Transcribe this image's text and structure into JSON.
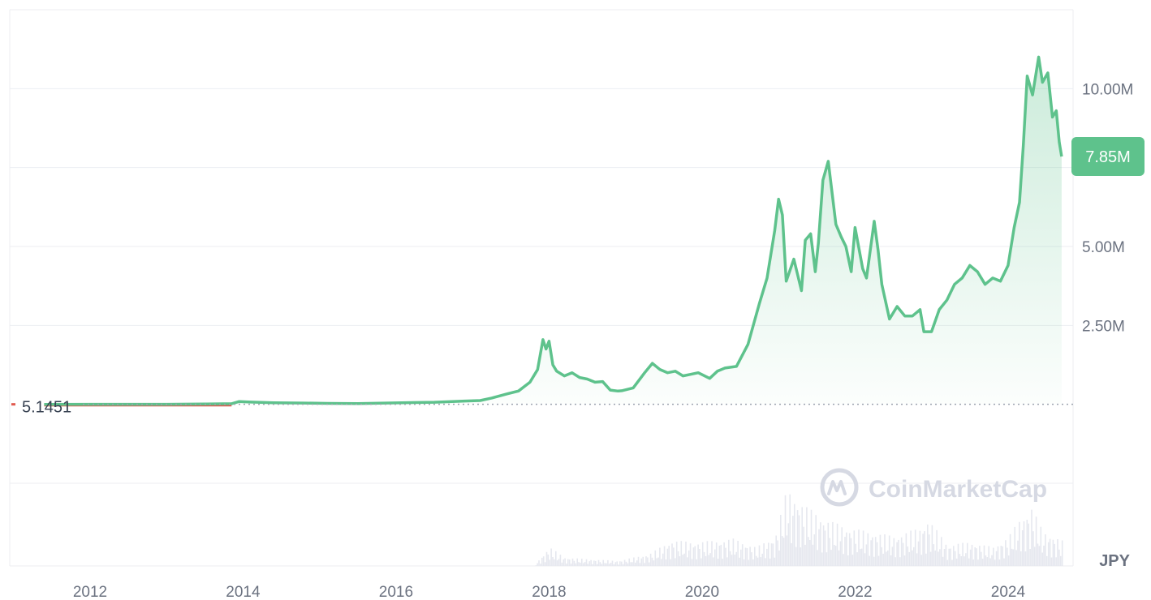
{
  "colors": {
    "line_up": "#5ec28c",
    "line_down": "#e05a4f",
    "area_top": "#5ec28c",
    "grid": "#eceef2",
    "volume": "#e6e8ef",
    "badge": "#5ec28c",
    "watermark": "#d6d9e3"
  },
  "watermark": {
    "icon": "coinmarketcap-logo-icon",
    "text": "CoinMarketCap"
  },
  "currency": "JPY",
  "current_price_badge": "7.85M",
  "baseline_label": "5.1451",
  "chart_data": {
    "type": "area",
    "title": "",
    "xlabel": "",
    "ylabel": "",
    "grid": true,
    "x_ticks": [
      "2012",
      "2014",
      "2016",
      "2018",
      "2020",
      "2022",
      "2024"
    ],
    "y_ticks": [
      {
        "value": 2500000,
        "label": "2.50M"
      },
      {
        "value": 5000000,
        "label": "5.00M"
      },
      {
        "value": 10000000,
        "label": "10.00M"
      }
    ],
    "ylim": [
      -2500000,
      12500000
    ],
    "xlim": [
      2010.95,
      2024.85
    ],
    "baseline": 5.1451,
    "last_value": 7850000,
    "series": [
      {
        "x": [
          2011.4,
          2012.0,
          2012.5,
          2013.0,
          2013.5,
          2013.85,
          2013.95,
          2014.1,
          2014.4,
          2014.8,
          2015.1,
          2015.5,
          2016.0,
          2016.5,
          2016.9,
          2017.1,
          2017.25,
          2017.45,
          2017.6,
          2017.75,
          2017.85,
          2017.92,
          2017.96,
          2018.0,
          2018.05,
          2018.1,
          2018.2,
          2018.3,
          2018.4,
          2018.5,
          2018.6,
          2018.7,
          2018.8,
          2018.9,
          2018.95,
          2019.1,
          2019.25,
          2019.35,
          2019.45,
          2019.55,
          2019.65,
          2019.75,
          2019.85,
          2019.95,
          2020.1,
          2020.2,
          2020.3,
          2020.45,
          2020.6,
          2020.75,
          2020.85,
          2020.95,
          2021.0,
          2021.05,
          2021.1,
          2021.2,
          2021.3,
          2021.35,
          2021.42,
          2021.48,
          2021.52,
          2021.58,
          2021.65,
          2021.75,
          2021.82,
          2021.88,
          2021.95,
          2022.0,
          2022.1,
          2022.15,
          2022.25,
          2022.3,
          2022.35,
          2022.45,
          2022.55,
          2022.65,
          2022.75,
          2022.85,
          2022.9,
          2023.0,
          2023.1,
          2023.2,
          2023.3,
          2023.4,
          2023.5,
          2023.6,
          2023.7,
          2023.8,
          2023.9,
          2024.0,
          2024.08,
          2024.15,
          2024.2,
          2024.25,
          2024.32,
          2024.4,
          2024.45,
          2024.52,
          2024.58,
          2024.63,
          2024.67,
          2024.7
        ],
        "y": [
          5.1451,
          500,
          1200,
          2000,
          10000,
          20000,
          90000,
          70000,
          50000,
          40000,
          30000,
          25000,
          45000,
          65000,
          105000,
          120000,
          200000,
          330000,
          420000,
          700000,
          1100000,
          2050000,
          1750000,
          2000000,
          1250000,
          1050000,
          900000,
          1000000,
          850000,
          800000,
          700000,
          720000,
          450000,
          420000,
          430000,
          520000,
          1000000,
          1300000,
          1100000,
          1000000,
          1050000,
          900000,
          950000,
          1000000,
          820000,
          1050000,
          1150000,
          1200000,
          1900000,
          3200000,
          4000000,
          5500000,
          6500000,
          6000000,
          3900000,
          4600000,
          3600000,
          5200000,
          5400000,
          4200000,
          5100000,
          7100000,
          7700000,
          5700000,
          5300000,
          5000000,
          4200000,
          5600000,
          4300000,
          4000000,
          5800000,
          4900000,
          3800000,
          2700000,
          3100000,
          2800000,
          2800000,
          3000000,
          2300000,
          2300000,
          3000000,
          3300000,
          3800000,
          4000000,
          4400000,
          4200000,
          3800000,
          4000000,
          3900000,
          4400000,
          5600000,
          6400000,
          8200000,
          10400000,
          9800000,
          11000000,
          10200000,
          10500000,
          9100000,
          9300000,
          8300000,
          7850000
        ]
      }
    ],
    "volume": [
      {
        "x": [
          2011.4,
          2017.8,
          2017.9,
          2018.0,
          2018.2,
          2018.5,
          2018.9,
          2019.3,
          2019.6,
          2019.9,
          2020.2,
          2020.4,
          2020.7,
          2020.95,
          2021.1,
          2021.35,
          2021.6,
          2021.9,
          2022.2,
          2022.5,
          2022.85,
          2022.95,
          2023.2,
          2023.5,
          2023.8,
          2024.0,
          2024.15,
          2024.3,
          2024.45,
          2024.6,
          2024.7
        ],
        "y": [
          0,
          0,
          12,
          22,
          10,
          8,
          6,
          14,
          30,
          28,
          30,
          32,
          22,
          35,
          90,
          70,
          55,
          45,
          40,
          35,
          45,
          55,
          25,
          28,
          22,
          35,
          55,
          70,
          40,
          35,
          30
        ]
      }
    ]
  }
}
